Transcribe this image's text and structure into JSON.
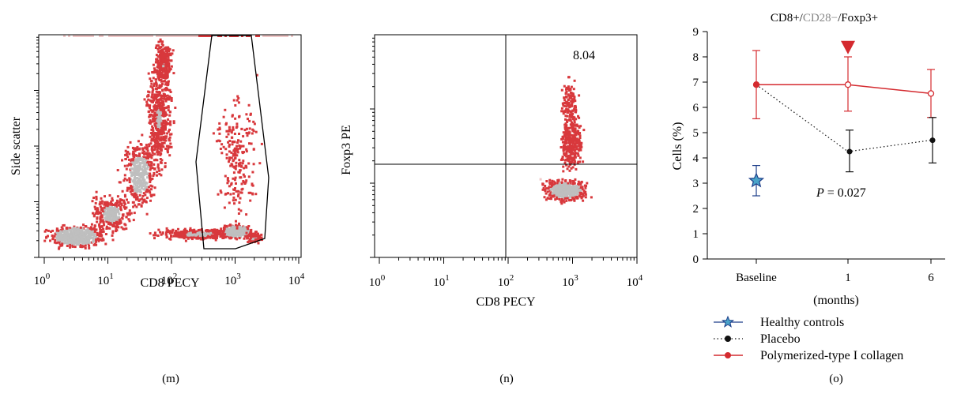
{
  "colors": {
    "treatment": "#d42a2f",
    "placebo": "#111111",
    "healthy_fill": "#4aa3c8",
    "healthy_stroke": "#1e3f8a",
    "density_high": "#bfbfbf",
    "density_mid": "#d8383c",
    "density_low": "#f0c8c8"
  },
  "chart_data": [
    {
      "type": "scatter",
      "panel_label": "(m)",
      "xlabel": "CD8 PECY",
      "ylabel": "Side scatter",
      "x_scale": "log",
      "xlim": [
        1,
        10000
      ],
      "x_ticks": [
        {
          "base": "10",
          "exp": "0",
          "value": 1
        },
        {
          "base": "10",
          "exp": "1",
          "value": 10
        },
        {
          "base": "10",
          "exp": "2",
          "value": 100
        },
        {
          "base": "10",
          "exp": "3",
          "value": 1000
        },
        {
          "base": "10",
          "exp": "4",
          "value": 10000
        }
      ],
      "y_tick_labels": "none",
      "gate": "polygon",
      "gate_population": "CD8+"
    },
    {
      "type": "scatter",
      "panel_label": "(n)",
      "xlabel": "CD8 PECY",
      "ylabel": "Foxp3 PE",
      "x_scale": "log",
      "xlim": [
        1,
        10000
      ],
      "x_ticks": [
        {
          "base": "10",
          "exp": "0",
          "value": 1
        },
        {
          "base": "10",
          "exp": "1",
          "value": 10
        },
        {
          "base": "10",
          "exp": "2",
          "value": 100
        },
        {
          "base": "10",
          "exp": "3",
          "value": 1000
        },
        {
          "base": "10",
          "exp": "4",
          "value": 10000
        }
      ],
      "quadrant_x": 100,
      "quadrant_label": "8.04",
      "quadrant_position": "top-right"
    },
    {
      "type": "line",
      "panel_label": "(o)",
      "title_parts": [
        {
          "text": "CD8+/",
          "color": "#000000"
        },
        {
          "text": "CD28−",
          "color": "#888888"
        },
        {
          "text": "/Foxp3+",
          "color": "#000000"
        }
      ],
      "ylabel": "Cells (%)",
      "xlabel": "(months)",
      "categories": [
        "Baseline",
        "1",
        "6"
      ],
      "ylim": [
        0,
        9
      ],
      "y_ticks": [
        "0",
        "1",
        "2",
        "3",
        "4",
        "5",
        "6",
        "7",
        "8",
        "9"
      ],
      "series": [
        {
          "name": "Polymerized-type I collagen",
          "style": "solid",
          "values": [
            6.9,
            6.9,
            6.55
          ],
          "err_low": [
            5.55,
            5.85,
            5.6
          ],
          "err_high": [
            8.25,
            8.0,
            7.5
          ]
        },
        {
          "name": "Placebo",
          "style": "dotted",
          "values": [
            6.9,
            4.25,
            4.7
          ],
          "err_low": [
            6.9,
            3.45,
            3.8
          ],
          "err_high": [
            6.9,
            5.1,
            5.6
          ]
        },
        {
          "name": "Healthy controls",
          "style": "marker",
          "values": [
            3.1,
            null,
            null
          ],
          "err_low": [
            2.5,
            null,
            null
          ],
          "err_high": [
            3.7,
            null,
            null
          ]
        }
      ],
      "annotations": [
        {
          "text_italic": "P",
          "text": " = 0.027",
          "category": "1",
          "y": 2.7
        },
        {
          "type": "triangle-down-marker",
          "category": "1",
          "y": 8.35,
          "color": "#d42a2f"
        }
      ],
      "legend_position": "bottom-left"
    }
  ]
}
